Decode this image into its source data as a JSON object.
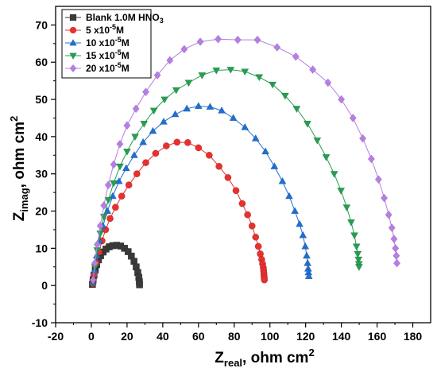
{
  "chart_data": {
    "type": "scatter",
    "title": "",
    "xlabel": {
      "main": "Z",
      "sub": "real",
      "rest": ", ohm cm",
      "sup": "2"
    },
    "ylabel": {
      "main": "Z",
      "sub": "imag",
      "rest": ", ohm cm",
      "sup": "2"
    },
    "xlim": [
      -20,
      190
    ],
    "ylim": [
      -10,
      75
    ],
    "xticks": [
      -20,
      0,
      20,
      40,
      60,
      80,
      100,
      120,
      140,
      160,
      180
    ],
    "yticks": [
      -10,
      0,
      10,
      20,
      30,
      40,
      50,
      60,
      70
    ],
    "grid": false,
    "legend_position": "top-left",
    "series": [
      {
        "name": "Blank 1.0M HNO",
        "name_sub": "3",
        "name_sup": "",
        "marker": "square",
        "color": "#3a3a3a",
        "x": [
          0.6,
          1.0,
          1.5,
          2.2,
          3.0,
          4.0,
          5.2,
          6.6,
          8.2,
          10.0,
          12.0,
          14.2,
          16.4,
          18.6,
          20.6,
          22.4,
          23.9,
          25.1,
          26.0,
          26.6,
          26.9,
          27.0
        ],
        "y": [
          0.3,
          1.5,
          2.8,
          4.2,
          5.6,
          6.9,
          8.0,
          9.0,
          9.8,
          10.4,
          10.7,
          10.8,
          10.6,
          10.0,
          9.1,
          7.9,
          6.5,
          5.0,
          3.5,
          2.2,
          1.0,
          0.2
        ]
      },
      {
        "name": "5 x10",
        "name_sub": "",
        "name_sup": "-5",
        "name_suffix": "M",
        "marker": "circle",
        "color": "#e8302f",
        "x": [
          0.8,
          1.6,
          2.8,
          4.3,
          6.0,
          8.0,
          10.5,
          13.5,
          17.0,
          21.0,
          25.5,
          30.5,
          36.0,
          42.0,
          48.0,
          54.0,
          60.0,
          66.0,
          71.5,
          76.5,
          81.0,
          84.5,
          87.5,
          90.0,
          92.0,
          93.5,
          94.6,
          95.4,
          95.9,
          96.3,
          96.5,
          96.6,
          96.7,
          96.8,
          96.9
        ],
        "y": [
          0.5,
          3.0,
          6.0,
          9.0,
          12.0,
          15.0,
          18.0,
          21.0,
          24.0,
          27.0,
          30.0,
          33.0,
          35.5,
          37.5,
          38.5,
          38.4,
          37.0,
          35.0,
          32.0,
          29.0,
          25.5,
          22.0,
          19.0,
          16.0,
          13.0,
          10.5,
          8.5,
          7.0,
          5.8,
          4.8,
          4.0,
          3.3,
          2.6,
          2.0,
          1.5
        ]
      },
      {
        "name": "10 x10",
        "name_sub": "",
        "name_sup": "-5",
        "name_suffix": "M",
        "marker": "triangle-up",
        "color": "#1f6fd1",
        "x": [
          0.8,
          1.8,
          3.0,
          4.5,
          6.5,
          9.0,
          12.0,
          15.5,
          19.5,
          24.0,
          29.0,
          34.5,
          40.5,
          47.0,
          53.5,
          60.0,
          66.5,
          73.0,
          79.5,
          86.0,
          92.0,
          97.5,
          102.5,
          107.0,
          110.8,
          114.0,
          116.6,
          118.5,
          119.8,
          120.6,
          121.1,
          121.4,
          121.6,
          121.8
        ],
        "y": [
          0.8,
          4.0,
          8.0,
          12.0,
          16.0,
          20.0,
          24.0,
          28.0,
          31.5,
          35.0,
          38.5,
          41.5,
          44.0,
          46.0,
          47.5,
          48.2,
          48.0,
          47.0,
          45.0,
          42.5,
          39.5,
          36.0,
          32.0,
          28.0,
          24.0,
          20.0,
          16.5,
          13.5,
          10.5,
          8.0,
          6.0,
          4.5,
          3.5,
          2.5
        ]
      },
      {
        "name": "15 x10",
        "name_sub": "",
        "name_sup": "-5",
        "name_suffix": "M",
        "marker": "triangle-down",
        "color": "#22a04f",
        "x": [
          1.0,
          2.0,
          3.3,
          5.0,
          7.0,
          9.5,
          12.5,
          16.0,
          20.0,
          24.5,
          29.5,
          35.0,
          41.0,
          47.5,
          54.5,
          62.0,
          70.0,
          78.0,
          86.0,
          94.0,
          101.5,
          108.5,
          115.0,
          121.0,
          126.5,
          131.5,
          136.0,
          139.8,
          143.0,
          145.5,
          147.3,
          148.5,
          149.2,
          149.6,
          149.8,
          149.9
        ],
        "y": [
          1.0,
          5.0,
          9.5,
          14.0,
          18.5,
          23.0,
          27.5,
          32.0,
          36.0,
          40.0,
          43.5,
          47.0,
          50.0,
          52.5,
          54.5,
          56.5,
          57.8,
          58.0,
          57.5,
          56.0,
          54.0,
          51.0,
          47.5,
          43.5,
          39.0,
          34.5,
          30.0,
          25.5,
          21.0,
          17.0,
          13.5,
          10.5,
          8.5,
          7.0,
          5.8,
          5.0
        ]
      },
      {
        "name": "20 x10",
        "name_sub": "",
        "name_sup": "-5",
        "name_suffix": "M",
        "marker": "diamond",
        "color": "#b77de6",
        "x": [
          1.0,
          2.0,
          3.3,
          5.0,
          7.0,
          9.5,
          12.5,
          16.0,
          20.0,
          25.0,
          30.5,
          37.0,
          44.0,
          52.0,
          61.0,
          71.0,
          82.0,
          93.0,
          104.0,
          114.5,
          124.0,
          132.5,
          140.0,
          146.5,
          152.0,
          156.8,
          160.8,
          164.0,
          166.5,
          168.3,
          169.5,
          170.3,
          170.8,
          171.1
        ],
        "y": [
          1.5,
          6.0,
          11.0,
          16.0,
          21.5,
          27.0,
          32.5,
          38.0,
          43.0,
          47.5,
          52.0,
          56.5,
          60.5,
          63.5,
          65.5,
          66.2,
          66.0,
          66.0,
          64.0,
          61.5,
          58.0,
          54.5,
          50.0,
          45.0,
          39.5,
          34.0,
          28.5,
          23.5,
          19.0,
          15.5,
          12.5,
          10.0,
          8.0,
          6.0
        ]
      }
    ]
  }
}
